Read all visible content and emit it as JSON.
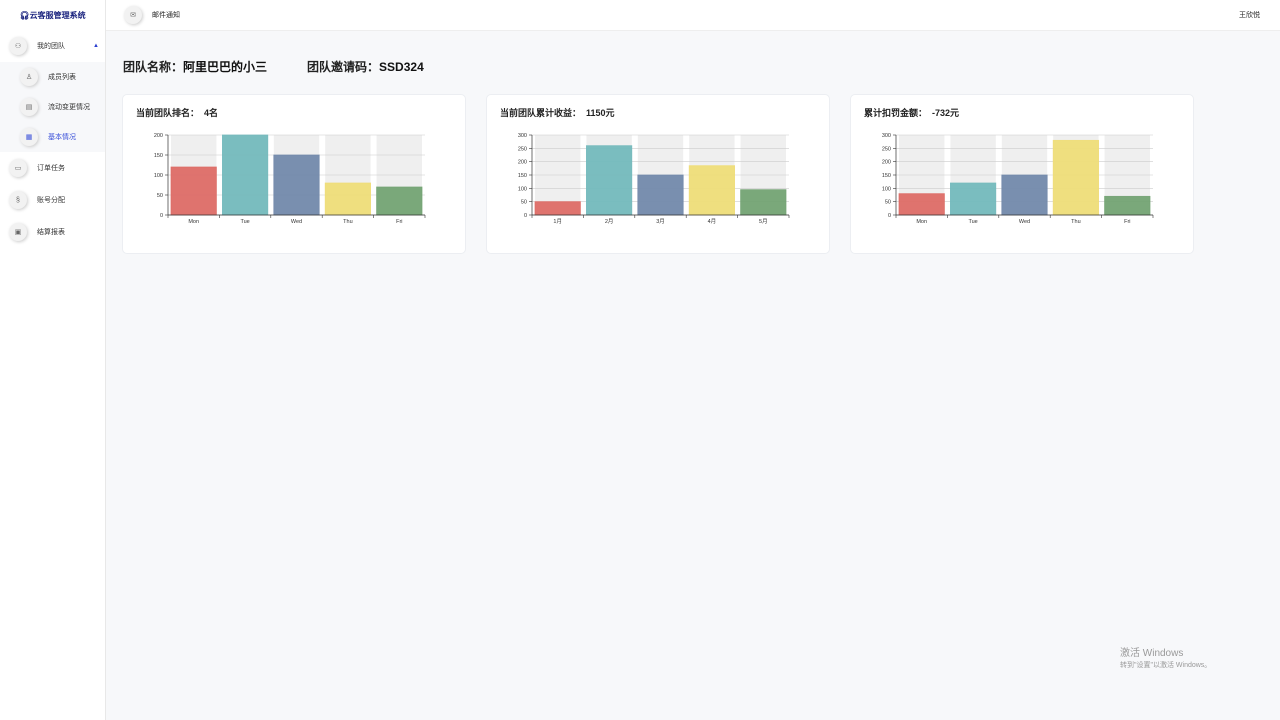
{
  "app": {
    "title": "云客服管理系统",
    "user": "王欣悦"
  },
  "header": {
    "notification": "邮件通知"
  },
  "sidebar": {
    "items": [
      {
        "label": "我的团队",
        "icon": "team-icon",
        "expanded": true,
        "children": [
          {
            "label": "成员列表",
            "icon": "member-icon"
          },
          {
            "label": "流动变更情况",
            "icon": "document-icon"
          },
          {
            "label": "基本情况",
            "icon": "dashboard-icon",
            "active": true
          }
        ]
      },
      {
        "label": "订单任务",
        "icon": "order-icon"
      },
      {
        "label": "账号分配",
        "icon": "account-icon"
      },
      {
        "label": "结算报表",
        "icon": "report-icon"
      }
    ]
  },
  "team": {
    "name_label": "团队名称：",
    "name": "阿里巴巴的小三",
    "code_label": "团队邀请码：",
    "code": "SSD324"
  },
  "cards": [
    {
      "label": "当前团队排名：",
      "value": "4名"
    },
    {
      "label": "当前团队累计收益：",
      "value": "1150元"
    },
    {
      "label": "累计扣罚金额：",
      "value": "-732元"
    }
  ],
  "colors": [
    "#dd6b66",
    "#73b9bc",
    "#7289ab",
    "#eedd78",
    "#73a373"
  ],
  "chart_data": [
    {
      "type": "bar",
      "categories": [
        "Mon",
        "Tue",
        "Wed",
        "Thu",
        "Fri"
      ],
      "values": [
        120,
        200,
        150,
        80,
        70
      ],
      "ylim": [
        0,
        200
      ],
      "yticks": [
        0,
        50,
        100,
        150,
        200
      ],
      "grid": true,
      "background_bars": true
    },
    {
      "type": "bar",
      "categories": [
        "1月",
        "2月",
        "3月",
        "4月",
        "5月"
      ],
      "values": [
        50,
        260,
        150,
        185,
        95
      ],
      "ylim": [
        0,
        300
      ],
      "yticks": [
        0,
        50,
        100,
        150,
        200,
        250,
        300
      ],
      "grid": true,
      "background_bars": true
    },
    {
      "type": "bar",
      "categories": [
        "Mon",
        "Tue",
        "Wed",
        "Thu",
        "Fri"
      ],
      "values": [
        80,
        120,
        150,
        280,
        70
      ],
      "ylim": [
        0,
        300
      ],
      "yticks": [
        0,
        50,
        100,
        150,
        200,
        250,
        300
      ],
      "grid": true,
      "background_bars": true
    }
  ],
  "watermark": {
    "line1": "激活 Windows",
    "line2": "转到\"设置\"以激活 Windows。"
  }
}
